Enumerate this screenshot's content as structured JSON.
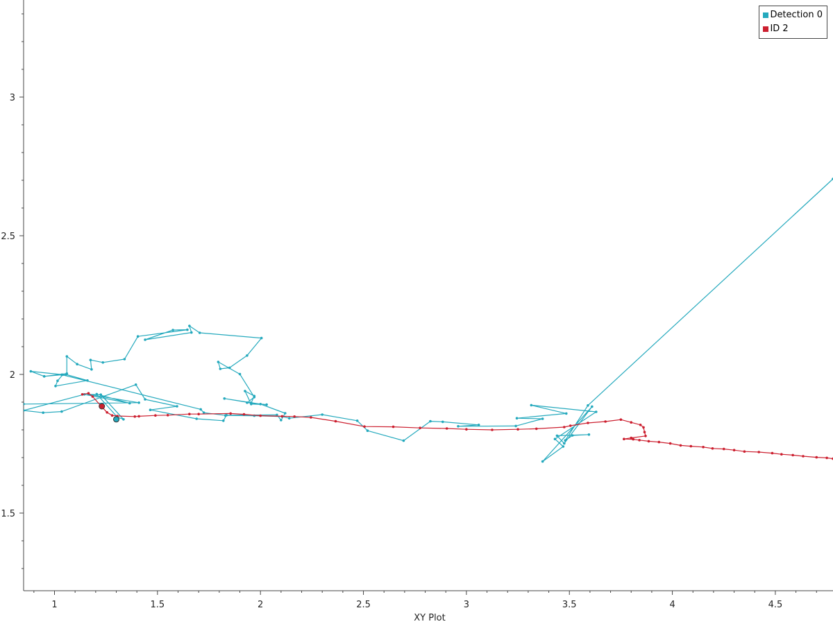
{
  "chart_data": {
    "type": "line",
    "title": "",
    "xlabel": "XY Plot",
    "ylabel": "",
    "xlim": [
      0.85,
      4.78
    ],
    "ylim": [
      1.22,
      3.35
    ],
    "x_ticks": [
      1,
      1.5,
      2,
      2.5,
      3,
      3.5,
      4,
      4.5
    ],
    "y_ticks": [
      1.5,
      2,
      2.5,
      3
    ],
    "x_tick_labels": [
      "1",
      "1.5",
      "2",
      "2.5",
      "3",
      "3.5",
      "4",
      "4.5"
    ],
    "y_tick_labels": [
      "1.5",
      "2",
      "2.5",
      "3"
    ],
    "grid": false,
    "legend_position": "top-right",
    "series": [
      {
        "name": "Detection 0",
        "color": "#24a9bd",
        "points": [
          [
            0.85,
            1.893
          ],
          [
            1.41,
            1.898
          ],
          [
            1.165,
            1.928
          ],
          [
            1.225,
            1.927
          ],
          [
            1.335,
            1.838
          ],
          [
            1.305,
            1.846
          ],
          [
            1.205,
            1.929
          ],
          [
            1.365,
            1.896
          ],
          [
            1.145,
            1.928
          ],
          [
            0.85,
            1.87
          ],
          [
            0.945,
            1.862
          ],
          [
            1.035,
            1.866
          ],
          [
            1.395,
            1.963
          ],
          [
            1.44,
            1.91
          ],
          [
            1.595,
            1.885
          ],
          [
            1.465,
            1.872
          ],
          [
            1.69,
            1.84
          ],
          [
            1.82,
            1.833
          ],
          [
            1.835,
            1.853
          ],
          [
            2.08,
            1.854
          ],
          [
            2.1,
            1.835
          ],
          [
            2.12,
            1.86
          ],
          [
            2.0,
            1.893
          ],
          [
            1.825,
            1.913
          ],
          [
            1.955,
            1.897
          ],
          [
            1.97,
            1.922
          ],
          [
            1.925,
            1.94
          ],
          [
            1.955,
            1.893
          ],
          [
            2.03,
            1.891
          ],
          [
            1.935,
            1.898
          ],
          [
            1.97,
            1.918
          ],
          [
            1.9,
            2.001
          ],
          [
            1.795,
            2.045
          ],
          [
            1.805,
            2.02
          ],
          [
            1.85,
            2.024
          ],
          [
            1.935,
            2.068
          ],
          [
            2.005,
            2.131
          ],
          [
            1.705,
            2.15
          ],
          [
            1.655,
            2.175
          ],
          [
            1.665,
            2.151
          ],
          [
            1.44,
            2.125
          ],
          [
            1.575,
            2.16
          ],
          [
            1.645,
            2.161
          ],
          [
            1.405,
            2.137
          ],
          [
            1.34,
            2.055
          ],
          [
            1.235,
            2.043
          ],
          [
            1.175,
            2.052
          ],
          [
            1.18,
            2.018
          ],
          [
            1.11,
            2.037
          ],
          [
            1.06,
            2.065
          ],
          [
            1.06,
            2.003
          ],
          [
            0.95,
            1.993
          ],
          [
            0.885,
            2.011
          ],
          [
            1.04,
            1.999
          ],
          [
            1.015,
            1.977
          ],
          [
            1.005,
            1.958
          ],
          [
            1.16,
            1.978
          ],
          [
            1.055,
            2.0
          ],
          [
            0.95,
            1.993
          ],
          [
            1.035,
            1.999
          ],
          [
            1.71,
            1.874
          ],
          [
            1.725,
            1.862
          ],
          [
            1.83,
            1.852
          ],
          [
            1.97,
            1.851
          ],
          [
            2.105,
            1.848
          ],
          [
            2.14,
            1.842
          ],
          [
            2.3,
            1.855
          ],
          [
            2.47,
            1.833
          ],
          [
            2.52,
            1.797
          ],
          [
            2.695,
            1.761
          ],
          [
            2.825,
            1.831
          ],
          [
            2.885,
            1.829
          ],
          [
            3.06,
            1.818
          ],
          [
            2.96,
            1.813
          ],
          [
            3.24,
            1.814
          ],
          [
            3.37,
            1.84
          ],
          [
            3.245,
            1.842
          ],
          [
            3.485,
            1.859
          ],
          [
            3.315,
            1.889
          ],
          [
            3.63,
            1.865
          ],
          [
            3.43,
            1.767
          ],
          [
            3.47,
            1.74
          ],
          [
            3.37,
            1.686
          ],
          [
            3.61,
            1.884
          ],
          [
            3.475,
            1.751
          ],
          [
            3.44,
            1.779
          ],
          [
            3.595,
            1.783
          ],
          [
            3.515,
            1.78
          ],
          [
            3.48,
            1.762
          ],
          [
            3.59,
            1.888
          ],
          [
            4.78,
            2.705
          ]
        ]
      },
      {
        "name": "ID 2",
        "color": "#cc1f2f",
        "points": [
          [
            1.135,
            1.928
          ],
          [
            1.165,
            1.932
          ],
          [
            1.185,
            1.92
          ],
          [
            1.23,
            1.883
          ],
          [
            1.255,
            1.863
          ],
          [
            1.28,
            1.852
          ],
          [
            1.305,
            1.85
          ],
          [
            1.39,
            1.848
          ],
          [
            1.41,
            1.849
          ],
          [
            1.49,
            1.852
          ],
          [
            1.55,
            1.853
          ],
          [
            1.655,
            1.857
          ],
          [
            1.7,
            1.857
          ],
          [
            1.855,
            1.859
          ],
          [
            1.92,
            1.856
          ],
          [
            2.0,
            1.851
          ],
          [
            2.105,
            1.849
          ],
          [
            2.165,
            1.848
          ],
          [
            2.245,
            1.845
          ],
          [
            2.365,
            1.831
          ],
          [
            2.505,
            1.812
          ],
          [
            2.645,
            1.811
          ],
          [
            2.775,
            1.807
          ],
          [
            2.905,
            1.805
          ],
          [
            3.0,
            1.802
          ],
          [
            3.125,
            1.8
          ],
          [
            3.25,
            1.802
          ],
          [
            3.34,
            1.804
          ],
          [
            3.475,
            1.81
          ],
          [
            3.505,
            1.815
          ],
          [
            3.59,
            1.825
          ],
          [
            3.675,
            1.83
          ],
          [
            3.75,
            1.837
          ],
          [
            3.8,
            1.827
          ],
          [
            3.845,
            1.818
          ],
          [
            3.86,
            1.809
          ],
          [
            3.865,
            1.792
          ],
          [
            3.87,
            1.778
          ],
          [
            3.8,
            1.771
          ],
          [
            3.765,
            1.767
          ],
          [
            3.81,
            1.766
          ],
          [
            3.84,
            1.763
          ],
          [
            3.885,
            1.759
          ],
          [
            3.935,
            1.756
          ],
          [
            3.99,
            1.751
          ],
          [
            4.04,
            1.744
          ],
          [
            4.09,
            1.741
          ],
          [
            4.15,
            1.738
          ],
          [
            4.195,
            1.733
          ],
          [
            4.25,
            1.731
          ],
          [
            4.3,
            1.727
          ],
          [
            4.35,
            1.722
          ],
          [
            4.42,
            1.72
          ],
          [
            4.485,
            1.716
          ],
          [
            4.53,
            1.712
          ],
          [
            4.585,
            1.709
          ],
          [
            4.635,
            1.705
          ],
          [
            4.7,
            1.701
          ],
          [
            4.75,
            1.699
          ],
          [
            4.78,
            1.696
          ]
        ]
      }
    ],
    "markers": [
      {
        "series": "Detection 0",
        "x": 1.3,
        "y": 1.838
      },
      {
        "series": "ID 2",
        "x": 1.23,
        "y": 1.885
      }
    ]
  }
}
